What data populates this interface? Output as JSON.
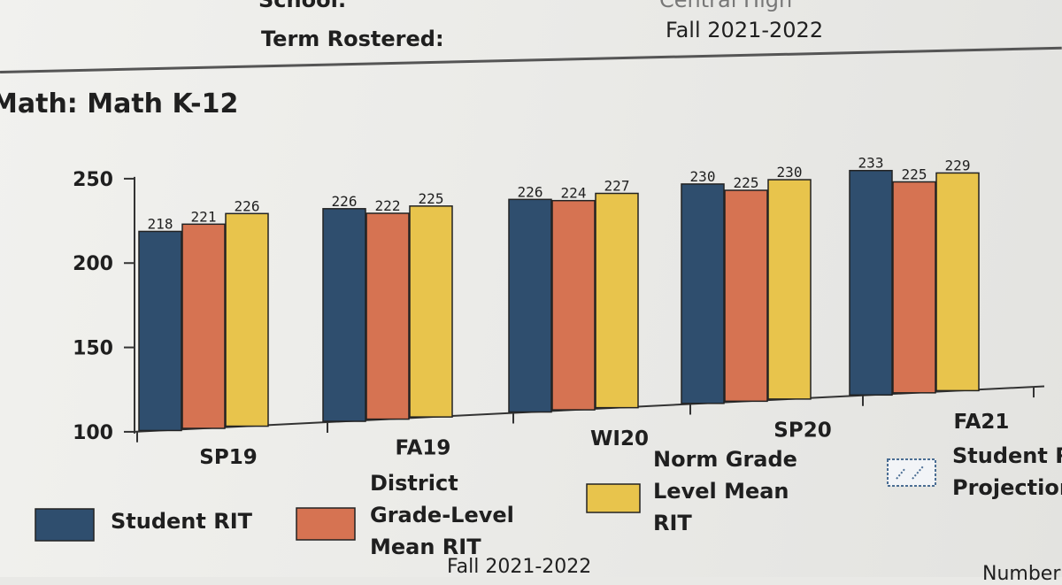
{
  "header": {
    "school_label": "School:",
    "school_value": "Central High",
    "term_label": "Term Rostered:",
    "term_value": "Fall 2021-2022"
  },
  "section_title": "Math: Math K-12",
  "colors": {
    "student": "#2f4e6e",
    "district": "#d67352",
    "norm": "#e8c44c",
    "projection": "#4a6d93"
  },
  "chart_data": {
    "type": "bar",
    "title": "Math: Math K-12",
    "categories": [
      "SP19",
      "FA19",
      "WI20",
      "SP20",
      "FA21"
    ],
    "series": [
      {
        "name": "Student RIT",
        "values": [
          218,
          226,
          226,
          230,
          233
        ]
      },
      {
        "name": "District Grade-Level Mean RIT",
        "values": [
          221,
          222,
          224,
          225,
          225
        ]
      },
      {
        "name": "Norm Grade Level Mean RIT",
        "values": [
          226,
          225,
          227,
          230,
          229
        ]
      }
    ],
    "ylim": [
      100,
      250
    ],
    "yticks": [
      100,
      150,
      200,
      250
    ],
    "xlabel": "",
    "ylabel": "",
    "legend_position": "bottom"
  },
  "legend": [
    {
      "lines": [
        "Student RIT"
      ]
    },
    {
      "lines": [
        "District",
        "Grade-Level",
        "Mean RIT"
      ]
    },
    {
      "lines": [
        "Norm Grade",
        "Level Mean",
        "RIT"
      ]
    },
    {
      "lines": [
        "Student R",
        "Projection"
      ]
    }
  ],
  "footer": {
    "term": "Fall 2021-2022",
    "cut_text": "Number"
  }
}
